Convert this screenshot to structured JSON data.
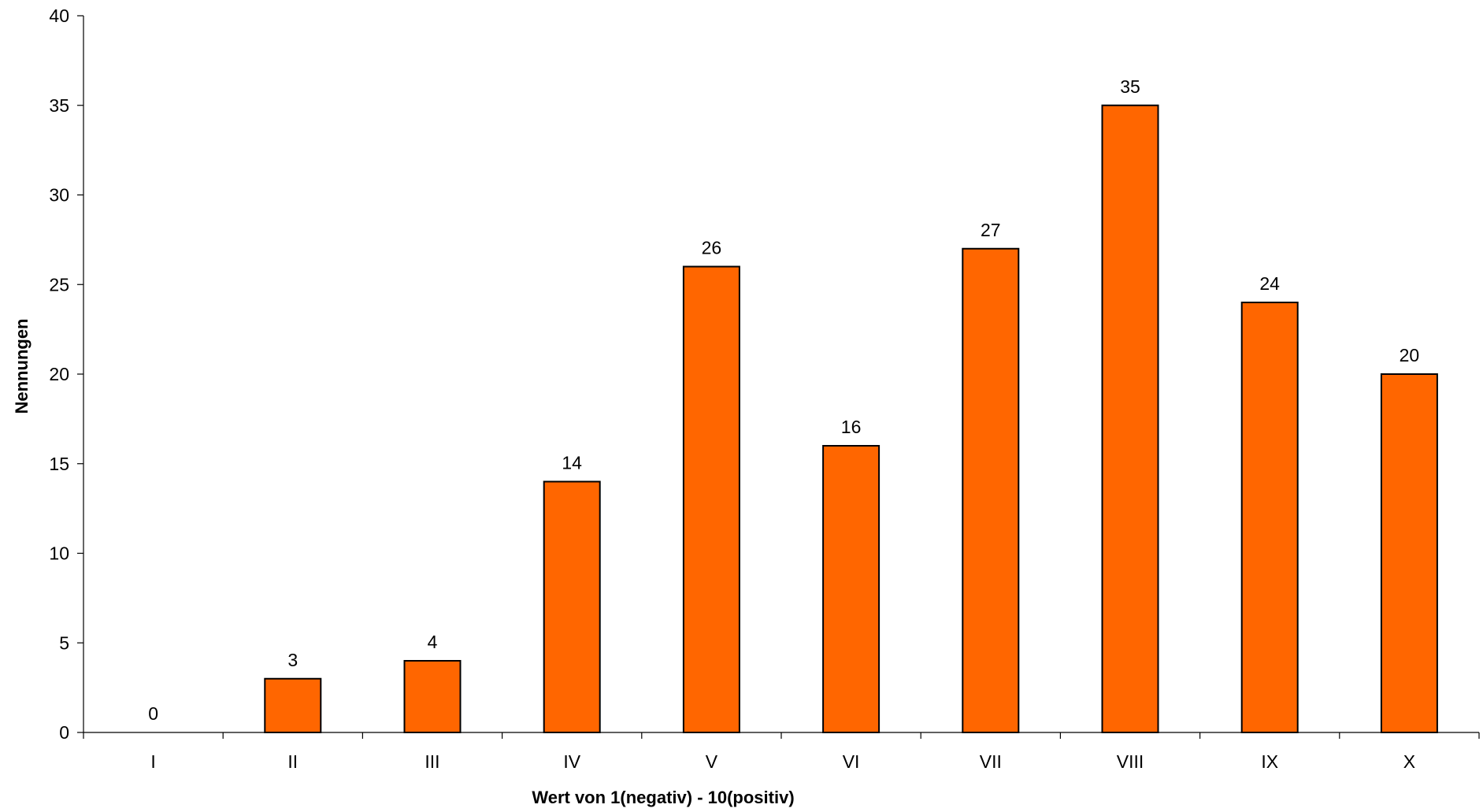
{
  "chart_data": {
    "type": "bar",
    "categories": [
      "I",
      "II",
      "III",
      "IV",
      "V",
      "VI",
      "VII",
      "VIII",
      "IX",
      "X"
    ],
    "values": [
      0,
      3,
      4,
      14,
      26,
      16,
      27,
      35,
      24,
      20
    ],
    "title": "",
    "xlabel": "Wert von 1(negativ) - 10(positiv)",
    "ylabel": "Nennungen",
    "ylim": [
      0,
      40
    ],
    "yticks": [
      0,
      5,
      10,
      15,
      20,
      25,
      30,
      35,
      40
    ],
    "bar_color": "#ff6600",
    "grid": false,
    "data_labels": true
  }
}
